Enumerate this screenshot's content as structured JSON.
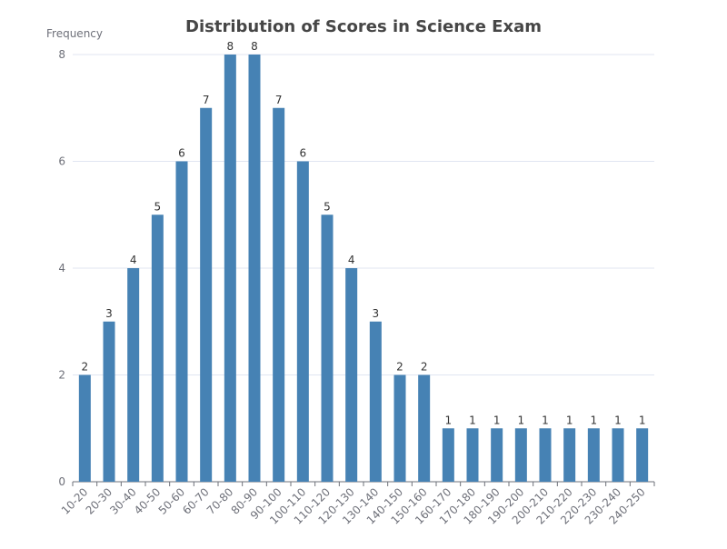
{
  "chart_data": {
    "type": "bar",
    "title": "Distribution of Scores in Science Exam",
    "ylabel": "Frequency",
    "xlabel": "",
    "categories": [
      "10-20",
      "20-30",
      "30-40",
      "40-50",
      "50-60",
      "60-70",
      "70-80",
      "80-90",
      "90-100",
      "100-110",
      "110-120",
      "120-130",
      "130-140",
      "140-150",
      "150-160",
      "160-170",
      "170-180",
      "180-190",
      "190-200",
      "200-210",
      "210-220",
      "220-230",
      "230-240",
      "240-250"
    ],
    "values": [
      2,
      3,
      4,
      5,
      6,
      7,
      8,
      8,
      7,
      6,
      5,
      4,
      3,
      2,
      2,
      1,
      1,
      1,
      1,
      1,
      1,
      1,
      1,
      1
    ],
    "ylim": [
      0,
      8
    ],
    "yticks": [
      0,
      2,
      4,
      6,
      8
    ],
    "grid": true,
    "data_labels": true,
    "colors": {
      "bar": "#4682b4",
      "grid": "#e0e6f1",
      "axis": "#6e7079",
      "label": "#333333"
    }
  }
}
